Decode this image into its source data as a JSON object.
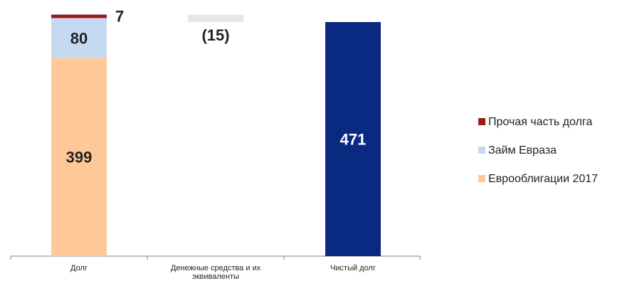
{
  "chart_data": {
    "type": "bar",
    "subtype": "waterfall-stacked",
    "title": "",
    "xlabel": "",
    "ylabel": "",
    "ylim": [
      0,
      500
    ],
    "grid": false,
    "legend_placement": "right",
    "categories": [
      "Долг",
      "Денежные средства и их эквиваленты",
      "Чистый долг"
    ],
    "series": [
      {
        "name": "Еврооблигации 2017",
        "color": "#FFC899",
        "values": [
          399,
          null,
          null
        ],
        "labels": [
          "399",
          null,
          null
        ]
      },
      {
        "name": "Займ Евраза",
        "color": "#C5DAF0",
        "values": [
          80,
          null,
          null
        ],
        "labels": [
          "80",
          null,
          null
        ]
      },
      {
        "name": "Прочая часть долга",
        "color": "#9B1B1B",
        "values": [
          7,
          null,
          null
        ],
        "labels": [
          "7",
          null,
          null
        ]
      }
    ],
    "cash_step": {
      "category": "Денежные средства и их эквиваленты",
      "from": 486,
      "to": 471,
      "value": -15,
      "label": "(15)",
      "color": "#E6E6E6"
    },
    "total": {
      "category": "Чистый долг",
      "value": 471,
      "label": "471",
      "color": "#0A2A82"
    },
    "legend": [
      {
        "name": "Прочая часть долга",
        "color": "#9B1B1B"
      },
      {
        "name": "Займ Евраза",
        "color": "#C5DAF0"
      },
      {
        "name": "Еврооблигации 2017",
        "color": "#FFC899"
      }
    ]
  }
}
